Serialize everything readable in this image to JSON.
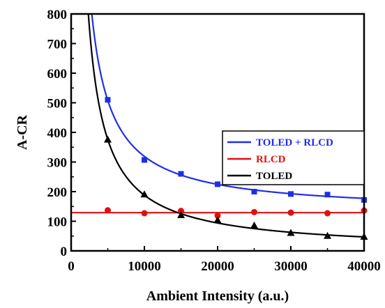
{
  "chart_data": {
    "type": "scatter",
    "xlabel": "Ambient Intensity (a.u.)",
    "ylabel": "A-CR",
    "xlim": [
      0,
      40000
    ],
    "ylim": [
      0,
      800
    ],
    "x_ticks": [
      0,
      10000,
      20000,
      30000,
      40000
    ],
    "y_ticks": [
      0,
      100,
      200,
      300,
      400,
      500,
      600,
      700,
      800
    ],
    "legend_position": "right",
    "series": [
      {
        "name": "TOLED + RLCD",
        "color": "#1f2ee6",
        "marker": "square",
        "points": [
          [
            5000,
            510
          ],
          [
            10000,
            307
          ],
          [
            15000,
            260
          ],
          [
            20000,
            225
          ],
          [
            25000,
            200
          ],
          [
            30000,
            192
          ],
          [
            35000,
            190
          ],
          [
            40000,
            172
          ]
        ],
        "fit": {
          "form": "a/x + c",
          "a": 1890000,
          "c": 130
        }
      },
      {
        "name": "RLCD",
        "color": "#e01010",
        "marker": "circle",
        "points": [
          [
            5000,
            137
          ],
          [
            10000,
            127
          ],
          [
            15000,
            135
          ],
          [
            20000,
            119
          ],
          [
            25000,
            131
          ],
          [
            30000,
            129
          ],
          [
            35000,
            127
          ],
          [
            40000,
            136
          ]
        ],
        "fit": {
          "form": "constant",
          "c": 129
        }
      },
      {
        "name": "TOLED",
        "color": "#000000",
        "marker": "triangle",
        "points": [
          [
            5000,
            375
          ],
          [
            10000,
            190
          ],
          [
            15000,
            120
          ],
          [
            20000,
            103
          ],
          [
            25000,
            85
          ],
          [
            30000,
            60
          ],
          [
            35000,
            50
          ],
          [
            40000,
            47
          ]
        ],
        "fit": {
          "form": "a/x",
          "a": 1880000
        }
      }
    ]
  }
}
